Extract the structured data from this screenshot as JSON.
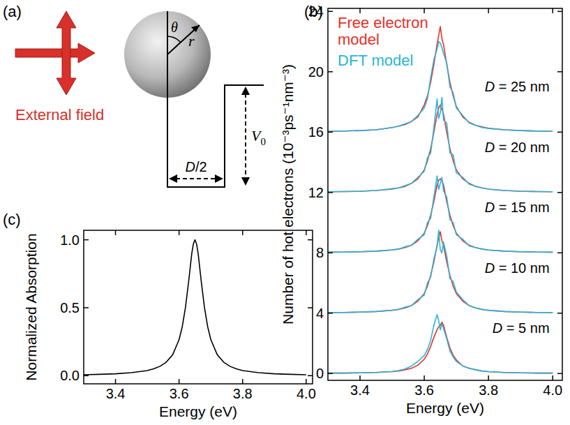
{
  "chart_data": [
    {
      "type": "line",
      "panel_label": "(b)",
      "x_label": "Energy (eV)",
      "y_label": "Number of hot electrons (10⁻³ps⁻¹nm⁻³)",
      "x": [
        3.3,
        3.35,
        3.4,
        3.45,
        3.5,
        3.52,
        3.54,
        3.56,
        3.58,
        3.6,
        3.61,
        3.62,
        3.63,
        3.64,
        3.645,
        3.65,
        3.655,
        3.66,
        3.67,
        3.68,
        3.69,
        3.7,
        3.72,
        3.74,
        3.76,
        3.78,
        3.8,
        3.85,
        3.9,
        3.95,
        4.0
      ],
      "xlim": [
        3.3,
        4.03
      ],
      "xticks": [
        3.4,
        3.6,
        3.8,
        {
          "value": 4,
          "label": "4.0"
        }
      ],
      "ylim": [
        -0.45,
        24.2
      ],
      "yticks": [
        0,
        4,
        8,
        12,
        16,
        20,
        24
      ],
      "grid": false,
      "legend": "top-left",
      "series": [
        {
          "name": "Free electron model",
          "color": "#e8302a",
          "values": [
            16.05,
            16.07,
            16.1,
            16.15,
            16.3,
            16.4,
            16.5,
            16.7,
            17.0,
            17.8,
            18.4,
            19.3,
            20.5,
            21.8,
            22.4,
            23.0,
            22.2,
            21.8,
            20.5,
            19.3,
            18.4,
            17.7,
            17.0,
            16.65,
            16.45,
            16.35,
            16.25,
            16.15,
            16.1,
            16.07,
            16.05
          ]
        },
        {
          "name": "DFT model",
          "color": "#29b5d8",
          "values": [
            16.05,
            16.07,
            16.1,
            16.15,
            16.3,
            16.4,
            16.55,
            16.7,
            17.1,
            17.6,
            18.2,
            19.6,
            20.8,
            21.5,
            22.0,
            21.9,
            21.6,
            21.2,
            20.6,
            19.0,
            18.6,
            17.6,
            17.1,
            16.6,
            16.45,
            16.3,
            16.25,
            16.15,
            16.1,
            16.07,
            16.05
          ]
        },
        {
          "name": "Free electron model",
          "color": "#e8302a",
          "values": [
            12.05,
            12.06,
            12.08,
            12.13,
            12.22,
            12.3,
            12.4,
            12.6,
            12.9,
            13.5,
            14.1,
            14.9,
            16.0,
            17.2,
            17.6,
            17.8,
            17.5,
            17.2,
            16.0,
            14.9,
            14.1,
            13.5,
            12.9,
            12.6,
            12.4,
            12.3,
            12.22,
            12.13,
            12.08,
            12.06,
            12.05
          ]
        },
        {
          "name": "DFT model",
          "color": "#29b5d8",
          "values": [
            12.05,
            12.06,
            12.08,
            12.13,
            12.25,
            12.3,
            12.45,
            12.6,
            13.0,
            13.4,
            14.3,
            14.6,
            16.3,
            18.2,
            16.9,
            17.3,
            18.3,
            16.8,
            16.6,
            14.6,
            14.5,
            13.3,
            13.0,
            12.55,
            12.4,
            12.3,
            12.22,
            12.13,
            12.08,
            12.06,
            12.05
          ]
        },
        {
          "name": "Free electron model",
          "color": "#e8302a",
          "values": [
            8.04,
            8.05,
            8.07,
            8.11,
            8.19,
            8.25,
            8.35,
            8.5,
            8.8,
            9.3,
            9.8,
            10.5,
            11.4,
            12.5,
            12.8,
            12.9,
            12.8,
            12.5,
            11.4,
            10.5,
            9.8,
            9.3,
            8.8,
            8.5,
            8.35,
            8.25,
            8.19,
            8.11,
            8.07,
            8.05,
            8.04
          ]
        },
        {
          "name": "DFT model",
          "color": "#29b5d8",
          "values": [
            8.04,
            8.05,
            8.07,
            8.11,
            8.2,
            8.25,
            8.4,
            8.5,
            8.9,
            9.2,
            10.0,
            10.3,
            11.7,
            13.1,
            12.2,
            12.6,
            13.0,
            12.1,
            11.7,
            10.2,
            10.0,
            9.2,
            8.9,
            8.45,
            8.35,
            8.25,
            8.19,
            8.11,
            8.07,
            8.05,
            8.04
          ]
        },
        {
          "name": "Free electron model",
          "color": "#e8302a",
          "values": [
            4.04,
            4.05,
            4.07,
            4.11,
            4.19,
            4.25,
            4.35,
            4.5,
            4.8,
            5.3,
            5.8,
            6.5,
            7.4,
            8.5,
            9.0,
            9.4,
            8.8,
            8.5,
            7.4,
            6.5,
            5.8,
            5.3,
            4.8,
            4.5,
            4.35,
            4.25,
            4.19,
            4.11,
            4.07,
            4.05,
            4.04
          ]
        },
        {
          "name": "DFT model",
          "color": "#29b5d8",
          "values": [
            4.04,
            4.05,
            4.07,
            4.11,
            4.2,
            4.25,
            4.4,
            4.5,
            4.9,
            5.2,
            6.0,
            6.4,
            7.6,
            8.4,
            9.5,
            8.2,
            8.0,
            8.7,
            7.8,
            6.3,
            6.1,
            5.4,
            4.9,
            4.5,
            4.35,
            4.25,
            4.19,
            4.11,
            4.07,
            4.05,
            4.04
          ]
        },
        {
          "name": "Free electron model",
          "color": "#e8302a",
          "values": [
            0.03,
            0.03,
            0.05,
            0.07,
            0.13,
            0.17,
            0.25,
            0.35,
            0.55,
            0.95,
            1.3,
            1.8,
            2.4,
            2.9,
            3.1,
            3.2,
            3.4,
            3.2,
            2.4,
            1.7,
            1.2,
            0.9,
            0.5,
            0.35,
            0.25,
            0.17,
            0.13,
            0.07,
            0.05,
            0.03,
            0.03
          ]
        },
        {
          "name": "DFT model",
          "color": "#29b5d8",
          "values": [
            0.03,
            0.03,
            0.05,
            0.07,
            0.14,
            0.2,
            0.3,
            0.5,
            0.8,
            1.2,
            1.6,
            2.2,
            3.2,
            3.9,
            3.5,
            2.9,
            3.3,
            3.0,
            2.3,
            1.5,
            1.1,
            0.8,
            0.5,
            0.35,
            0.25,
            0.17,
            0.13,
            0.07,
            0.05,
            0.03,
            0.03
          ]
        }
      ],
      "annotations": [
        {
          "text": "D = 25 nm",
          "x": 3.99,
          "y": 19
        },
        {
          "text": "D = 20 nm",
          "x": 3.99,
          "y": 15
        },
        {
          "text": "D = 15 nm",
          "x": 3.99,
          "y": 11
        },
        {
          "text": "D = 10 nm",
          "x": 3.99,
          "y": 7
        },
        {
          "text": "D = 5 nm",
          "x": 3.99,
          "y": 3
        }
      ]
    },
    {
      "type": "line",
      "panel_label": "(c)",
      "x_label": "Energy (eV)",
      "y_label": "Normalized Absorption",
      "x": [
        3.3,
        3.35,
        3.4,
        3.45,
        3.5,
        3.52,
        3.54,
        3.56,
        3.58,
        3.6,
        3.61,
        3.62,
        3.63,
        3.64,
        3.645,
        3.65,
        3.655,
        3.66,
        3.67,
        3.68,
        3.69,
        3.7,
        3.72,
        3.74,
        3.76,
        3.78,
        3.8,
        3.85,
        3.9,
        3.95,
        4.0
      ],
      "xlim": [
        3.3,
        4.02
      ],
      "xticks": [
        3.4,
        3.6,
        3.8,
        {
          "value": 4,
          "label": "4.0"
        }
      ],
      "ylim": [
        -0.06,
        1.07
      ],
      "yticks": [
        {
          "value": 0,
          "label": "0.0"
        },
        {
          "value": 0.5,
          "label": "0.5"
        },
        {
          "value": 1,
          "label": "1.0"
        }
      ],
      "grid": false,
      "series": [
        {
          "color": "#000000",
          "values": [
            0.007,
            0.01,
            0.014,
            0.022,
            0.038,
            0.05,
            0.069,
            0.1,
            0.155,
            0.265,
            0.36,
            0.5,
            0.69,
            0.9,
            0.97,
            1.0,
            0.97,
            0.9,
            0.69,
            0.5,
            0.36,
            0.265,
            0.155,
            0.1,
            0.069,
            0.05,
            0.038,
            0.022,
            0.014,
            0.01,
            0.007
          ]
        }
      ]
    }
  ],
  "diagram": {
    "panel_label": "(a)",
    "field_label": "External field",
    "angle": "θ",
    "radius": "r",
    "potential": {
      "symbol": "V",
      "subscript": "0"
    },
    "width": "D/2"
  }
}
